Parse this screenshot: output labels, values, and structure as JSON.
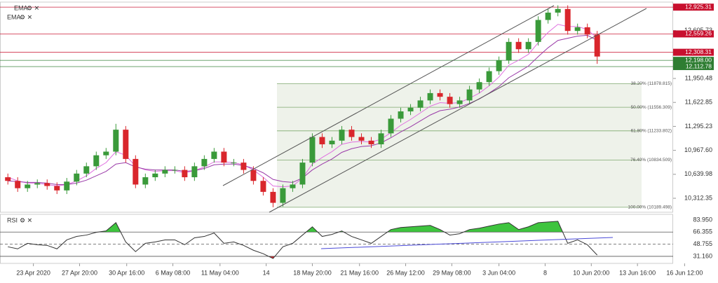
{
  "chart_data": [
    {
      "type": "candlestick",
      "xlim": [
        -0.8,
        72.3
      ],
      "ylim": [
        10150,
        12975
      ],
      "yticks": [
        {
          "value": 12605.73,
          "label": "12,605.73"
        },
        {
          "value": 11950.48,
          "label": "11,950.48"
        },
        {
          "value": 11622.85,
          "label": "11,622.85"
        },
        {
          "value": 11295.23,
          "label": "11,295.23"
        },
        {
          "value": 10967.6,
          "label": "10,967.60"
        },
        {
          "value": 10639.98,
          "label": "10,639.98"
        },
        {
          "value": 10312.35,
          "label": "10,312.35"
        }
      ],
      "up_color": "#3a9a3a",
      "down_color": "#d9262c",
      "open": [
        10600,
        10550,
        10450,
        10500,
        10520,
        10480,
        10420,
        10540,
        10650,
        10750,
        10900,
        10950,
        11250,
        10850,
        10500,
        10600,
        10650,
        10700,
        10700,
        10600,
        10750,
        10850,
        10950,
        10800,
        10800,
        10700,
        10550,
        10400,
        10250,
        10450,
        10500,
        10800,
        11150,
        11050,
        11100,
        11250,
        11150,
        11100,
        11050,
        11200,
        11400,
        11500,
        11550,
        11650,
        11750,
        11700,
        11600,
        11650,
        11800,
        11900,
        12050,
        12200,
        12450,
        12350,
        12450,
        12750,
        12850,
        12900,
        12600,
        12650,
        12550
      ],
      "high": [
        10650,
        10600,
        10550,
        10570,
        10570,
        10530,
        10590,
        10700,
        10800,
        10950,
        11000,
        11330,
        11300,
        10900,
        10650,
        10700,
        10750,
        10750,
        10750,
        10800,
        10900,
        11000,
        11000,
        10850,
        10850,
        10750,
        10600,
        10450,
        10500,
        10550,
        10850,
        11200,
        11200,
        11150,
        11300,
        11300,
        11200,
        11150,
        11250,
        11450,
        11550,
        11600,
        11700,
        11800,
        11800,
        11750,
        11700,
        11850,
        11950,
        12100,
        12250,
        12500,
        12500,
        12500,
        12800,
        12900,
        12950,
        12950,
        12700,
        12700,
        12600
      ],
      "low": [
        10500,
        10400,
        10400,
        10450,
        10430,
        10370,
        10370,
        10490,
        10600,
        10700,
        10850,
        10900,
        10800,
        10450,
        10450,
        10550,
        10600,
        10650,
        10550,
        10550,
        10700,
        10800,
        10750,
        10750,
        10650,
        10500,
        10350,
        10190,
        10200,
        10400,
        10450,
        10750,
        11000,
        11000,
        11050,
        11100,
        11050,
        11000,
        11000,
        11150,
        11350,
        11450,
        11500,
        11600,
        11650,
        11550,
        11550,
        11600,
        11750,
        11850,
        12000,
        12150,
        12300,
        12300,
        12400,
        12700,
        12800,
        12550,
        12550,
        12500,
        12150
      ],
      "close": [
        10550,
        10450,
        10500,
        10520,
        10480,
        10420,
        10540,
        10650,
        10750,
        10900,
        10950,
        11250,
        10850,
        10500,
        10600,
        10650,
        10700,
        10700,
        10600,
        10750,
        10850,
        10950,
        10800,
        10800,
        10700,
        10550,
        10400,
        10250,
        10450,
        10500,
        10800,
        11150,
        11050,
        11100,
        11250,
        11150,
        11100,
        11050,
        11200,
        11400,
        11500,
        11550,
        11650,
        11750,
        11700,
        11600,
        11650,
        11800,
        11900,
        12050,
        12200,
        12450,
        12350,
        12450,
        12750,
        12850,
        12900,
        12600,
        12650,
        12550,
        12250
      ],
      "series": [
        {
          "name": "EMA",
          "color": "#e070e0",
          "values": [
            10600,
            10550,
            10520,
            10520,
            10500,
            10480,
            10500,
            10550,
            10620,
            10720,
            10800,
            10950,
            10900,
            10750,
            10700,
            10680,
            10690,
            10690,
            10660,
            10690,
            10740,
            10810,
            10810,
            10800,
            10770,
            10700,
            10600,
            10480,
            10470,
            10480,
            10590,
            10780,
            10870,
            10950,
            11050,
            11080,
            11090,
            11080,
            11120,
            11210,
            11310,
            11390,
            11480,
            11570,
            11620,
            11610,
            11620,
            11680,
            11750,
            11850,
            11970,
            12130,
            12200,
            12280,
            12440,
            12580,
            12690,
            12660,
            12660,
            12620,
            12500
          ]
        },
        {
          "name": "EMA",
          "color": "#9a3aa8",
          "values": [
            10550,
            10540,
            10530,
            10530,
            10520,
            10500,
            10500,
            10520,
            10560,
            10620,
            10680,
            10780,
            10800,
            10740,
            10710,
            10700,
            10700,
            10700,
            10680,
            10690,
            10720,
            10770,
            10780,
            10780,
            10760,
            10720,
            10660,
            10570,
            10540,
            10530,
            10590,
            10700,
            10780,
            10850,
            10940,
            10990,
            11020,
            11030,
            11070,
            11140,
            11220,
            11290,
            11370,
            11450,
            11510,
            11530,
            11560,
            11610,
            11670,
            11750,
            11840,
            11960,
            12040,
            12120,
            12250,
            12370,
            12470,
            12500,
            12530,
            12540,
            12470
          ]
        }
      ],
      "levels": [
        {
          "value": 12925.31,
          "label": "12,925.31",
          "color": "#c8102e"
        },
        {
          "value": 12559.26,
          "label": "12,559.26",
          "color": "#c8102e"
        },
        {
          "value": 12308.31,
          "label": "12,308.31",
          "color": "#c8102e"
        },
        {
          "value": 12198.0,
          "label": "12,198.00",
          "color": "#2e7d32"
        },
        {
          "value": 12112.78,
          "label": "12,112.78",
          "color": "#2e7d32"
        }
      ],
      "fib_levels": [
        {
          "value": 11878.815,
          "label": "38.20% (11878.815)"
        },
        {
          "value": 11556.309,
          "label": "50.00% (11556.309)"
        },
        {
          "value": 11233.802,
          "label": "61.80% (11233.802)"
        },
        {
          "value": 10834.509,
          "label": "76.40% (10834.509)"
        },
        {
          "value": 10189.498,
          "label": "100.00% (10189.498)"
        }
      ]
    },
    {
      "type": "line",
      "xlim": [
        -0.8,
        72.3
      ],
      "ylim": [
        25,
        90
      ],
      "yticks": [
        {
          "value": 83.95,
          "label": "83.950"
        },
        {
          "value": 66.355,
          "label": "66.355"
        },
        {
          "value": 48.755,
          "label": "48.755"
        },
        {
          "value": 31.16,
          "label": "31.160"
        }
      ],
      "fill_above_color": "#3ec43e",
      "fill_below_color": "#d9262c",
      "series": [
        {
          "name": "RSI",
          "color": "#333333",
          "values": [
            45,
            42,
            50,
            48,
            47,
            42,
            55,
            60,
            62,
            66,
            68,
            80,
            52,
            38,
            50,
            52,
            55,
            55,
            48,
            58,
            60,
            65,
            50,
            52,
            47,
            40,
            35,
            28,
            45,
            50,
            62,
            74,
            60,
            63,
            68,
            60,
            55,
            50,
            60,
            70,
            73,
            74,
            75,
            76,
            70,
            62,
            64,
            70,
            72,
            75,
            78,
            80,
            70,
            74,
            80,
            81,
            82,
            50,
            55,
            48,
            33
          ]
        }
      ],
      "xticks": [
        {
          "value": 2.6,
          "label": "23 Apr 2020"
        },
        {
          "value": 7.3,
          "label": "27 Apr 20:00"
        },
        {
          "value": 12.1,
          "label": "30 Apr 16:00"
        },
        {
          "value": 16.8,
          "label": "6 May 08:00"
        },
        {
          "value": 21.6,
          "label": "11 May 04:00"
        },
        {
          "value": 26.3,
          "label": "14"
        },
        {
          "value": 31,
          "label": "18 May 20:00"
        },
        {
          "value": 35.8,
          "label": "21 May 16:00"
        },
        {
          "value": 40.5,
          "label": "26 May 12:00"
        },
        {
          "value": 45.2,
          "label": "29 May 08:00"
        },
        {
          "value": 50,
          "label": "3 Jun 04:00"
        },
        {
          "value": 54.7,
          "label": "8"
        },
        {
          "value": 59.4,
          "label": "10 Jun 20:00"
        },
        {
          "value": 64.1,
          "label": "13 Jun 16:00"
        },
        {
          "value": 68.9,
          "label": "16 Jun 12:00"
        }
      ]
    }
  ]
}
